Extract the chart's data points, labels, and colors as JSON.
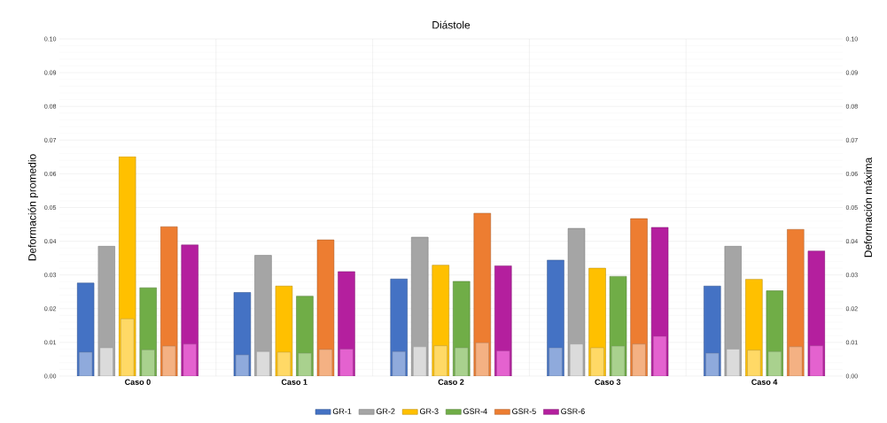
{
  "chart_data": {
    "type": "bar",
    "title": "Diástole",
    "ylabel": "Deformación promedio",
    "y2label": "Deformación máxima",
    "categories": [
      "Caso 0",
      "Caso 1",
      "Caso 2",
      "Caso 3",
      "Caso 4"
    ],
    "series": [
      {
        "name": "GR-1",
        "color": "#4472c4",
        "axis": "y2",
        "values": [
          0.0276,
          0.0248,
          0.0288,
          0.0344,
          0.0267
        ]
      },
      {
        "name": "GR-2",
        "color": "#a5a5a5",
        "axis": "y2",
        "values": [
          0.0385,
          0.0358,
          0.0412,
          0.0438,
          0.0385
        ]
      },
      {
        "name": "GR-3",
        "color": "#ffc000",
        "axis": "y2",
        "values": [
          0.0651,
          0.0267,
          0.0329,
          0.032,
          0.0287
        ]
      },
      {
        "name": "GSR-4",
        "color": "#70ad47",
        "axis": "y2",
        "values": [
          0.0262,
          0.0237,
          0.0281,
          0.0296,
          0.0253
        ]
      },
      {
        "name": "GSR-5",
        "color": "#ed7d31",
        "axis": "y2",
        "values": [
          0.0443,
          0.0404,
          0.0483,
          0.0467,
          0.0435
        ]
      },
      {
        "name": "GSR-6",
        "color": "#b41f9e",
        "axis": "y2",
        "values": [
          0.0389,
          0.031,
          0.0327,
          0.0441,
          0.0371
        ]
      },
      {
        "color": "#8faadc",
        "axis": "y",
        "values": [
          0.0071,
          0.0063,
          0.0073,
          0.0084,
          0.0068
        ]
      },
      {
        "color": "#dbdbdb",
        "axis": "y",
        "values": [
          0.0084,
          0.0073,
          0.0087,
          0.0095,
          0.008
        ]
      },
      {
        "color": "#ffd966",
        "axis": "y",
        "values": [
          0.017,
          0.0071,
          0.009,
          0.0084,
          0.0077
        ]
      },
      {
        "color": "#a9d18e",
        "axis": "y",
        "values": [
          0.0078,
          0.0068,
          0.0084,
          0.0089,
          0.0073
        ]
      },
      {
        "color": "#f4b183",
        "axis": "y",
        "values": [
          0.0089,
          0.0079,
          0.0099,
          0.0095,
          0.0087
        ]
      },
      {
        "color": "#e462cf",
        "axis": "y",
        "values": [
          0.0095,
          0.008,
          0.0075,
          0.0118,
          0.009
        ]
      }
    ],
    "ylim": [
      0,
      0.1
    ],
    "yticks": [
      {
        "value": 0,
        "label": "0.00"
      },
      {
        "value": 0.01,
        "label": "0.01"
      },
      {
        "value": 0.02,
        "label": "0.02"
      },
      {
        "value": 0.03,
        "label": "0.03"
      },
      {
        "value": 0.04,
        "label": "0.04"
      },
      {
        "value": 0.05,
        "label": "0.05"
      },
      {
        "value": 0.06,
        "label": "0.06"
      },
      {
        "value": 0.07,
        "label": "0.07"
      },
      {
        "value": 0.08,
        "label": "0.08"
      },
      {
        "value": 0.09,
        "label": "0.09"
      },
      {
        "value": 0.1,
        "label": "0.10"
      }
    ],
    "y2lim": [
      0,
      0.1
    ],
    "y2ticks": [
      {
        "value": 0,
        "label": "0.00"
      },
      {
        "value": 0.01,
        "label": "0.01"
      },
      {
        "value": 0.02,
        "label": "0.02"
      },
      {
        "value": 0.03,
        "label": "0.03"
      },
      {
        "value": 0.04,
        "label": "0.04"
      },
      {
        "value": 0.05,
        "label": "0.05"
      },
      {
        "value": 0.06,
        "label": "0.06"
      },
      {
        "value": 0.07,
        "label": "0.07"
      },
      {
        "value": 0.08,
        "label": "0.08"
      },
      {
        "value": 0.09,
        "label": "0.09"
      },
      {
        "value": 0.1,
        "label": "0.10"
      }
    ],
    "grid": true,
    "legend": "bottom"
  }
}
